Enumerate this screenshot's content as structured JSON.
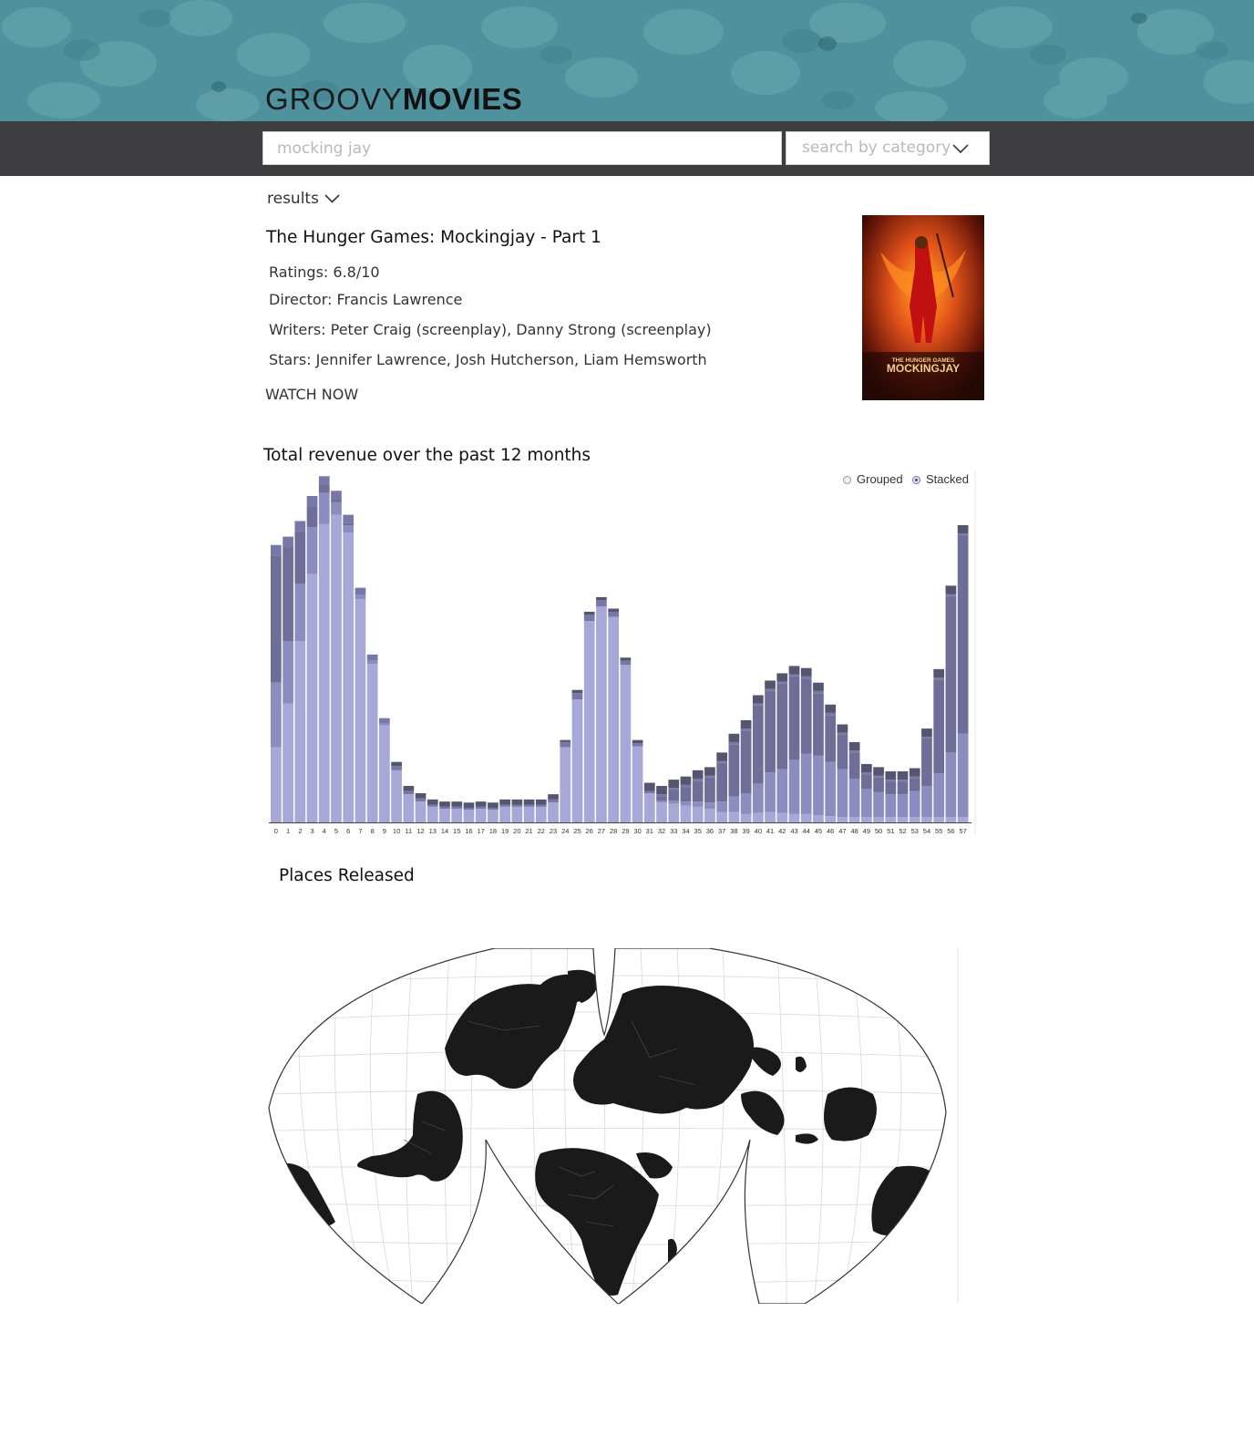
{
  "header": {
    "logo_light": "GROOVY",
    "logo_bold": "MOVIES",
    "colors": {
      "banner": "#4f929e",
      "toolbar": "#3d3d3f"
    }
  },
  "search": {
    "placeholder": "mocking jay",
    "value": "",
    "category_placeholder": "search by category",
    "category_icon": "chevron-down-icon"
  },
  "results": {
    "label": "results",
    "toggle_icon": "chevron-down-icon"
  },
  "movie": {
    "title": "The Hunger Games: Mockingjay - Part 1",
    "ratings": "Ratings: 6.8/10",
    "director": "Director: Francis Lawrence",
    "writers": "Writers: Peter Craig (screenplay), Danny Strong (screenplay)",
    "stars": "Stars: Jennifer Lawrence, Josh Hutcherson, Liam Hemsworth",
    "watch_label": "WATCH NOW",
    "poster": {
      "line1": "THE HUNGER GAMES",
      "line2": "MOCKINGJAY"
    }
  },
  "revenue": {
    "title": "Total revenue over the past 12 months",
    "legend_grouped": "Grouped",
    "legend_stacked": "Stacked",
    "selected_mode": "Stacked"
  },
  "chart_data": {
    "type": "bar",
    "stacked": true,
    "categories": [
      "0",
      "1",
      "2",
      "3",
      "4",
      "5",
      "6",
      "7",
      "8",
      "9",
      "10",
      "11",
      "12",
      "13",
      "14",
      "15",
      "16",
      "17",
      "18",
      "19",
      "20",
      "21",
      "22",
      "23",
      "24",
      "25",
      "26",
      "27",
      "28",
      "29",
      "30",
      "31",
      "32",
      "33",
      "34",
      "35",
      "36",
      "37",
      "38",
      "39",
      "40",
      "41",
      "42",
      "43",
      "44",
      "45",
      "46",
      "47",
      "48",
      "49",
      "50",
      "51",
      "52",
      "53",
      "54",
      "55",
      "56",
      "57"
    ],
    "series": [
      {
        "color": "#a8a8d8",
        "values": [
          72,
          114,
          174,
          238,
          286,
          295,
          278,
          214,
          152,
          93,
          50,
          27,
          20,
          15,
          13,
          13,
          12,
          13,
          12,
          15,
          15,
          15,
          15,
          19,
          72,
          118,
          193,
          207,
          197,
          151,
          73,
          28,
          19,
          18,
          16,
          15,
          13,
          10,
          10,
          8,
          9,
          10,
          9,
          8,
          8,
          7,
          6,
          5,
          5,
          5,
          5,
          5,
          5,
          5,
          5,
          5,
          5,
          5
        ]
      },
      {
        "color": "#8c8cc0",
        "values": [
          62,
          60,
          55,
          45,
          30,
          12,
          7,
          4,
          3,
          2,
          0,
          0,
          0,
          0,
          0,
          0,
          0,
          0,
          0,
          0,
          0,
          0,
          0,
          0,
          0,
          0,
          0,
          0,
          0,
          0,
          0,
          0,
          2,
          3,
          4,
          5,
          6,
          10,
          15,
          20,
          28,
          38,
          42,
          52,
          58,
          57,
          52,
          46,
          37,
          27,
          24,
          22,
          22,
          25,
          30,
          42,
          62,
          80
        ]
      },
      {
        "color": "#6e6e98",
        "values": [
          122,
          90,
          50,
          20,
          8,
          3,
          2,
          0,
          0,
          0,
          0,
          0,
          0,
          0,
          0,
          0,
          0,
          0,
          0,
          0,
          0,
          0,
          0,
          0,
          0,
          0,
          0,
          0,
          0,
          0,
          0,
          0,
          4,
          10,
          14,
          20,
          24,
          37,
          50,
          60,
          75,
          78,
          82,
          80,
          72,
          60,
          45,
          33,
          25,
          14,
          14,
          12,
          12,
          12,
          45,
          90,
          150,
          190
        ]
      },
      {
        "color": "#7878a8",
        "values": [
          10,
          10,
          10,
          10,
          8,
          8,
          8,
          7,
          6,
          5,
          4,
          3,
          3,
          2,
          2,
          2,
          2,
          2,
          2,
          2,
          2,
          2,
          2,
          3,
          5,
          6,
          6,
          6,
          5,
          4,
          3,
          2,
          2,
          2,
          2,
          2,
          2,
          2,
          2,
          2,
          2,
          2,
          2,
          2,
          2,
          2,
          2,
          2,
          2,
          2,
          2,
          2,
          2,
          2,
          2,
          2,
          2,
          2
        ]
      },
      {
        "color": "#555570",
        "values": [
          0,
          0,
          0,
          0,
          0,
          0,
          0,
          0,
          0,
          0,
          4,
          5,
          5,
          5,
          5,
          5,
          5,
          5,
          5,
          5,
          5,
          5,
          5,
          5,
          2,
          3,
          3,
          3,
          3,
          3,
          3,
          8,
          8,
          8,
          8,
          8,
          8,
          8,
          8,
          8,
          8,
          8,
          8,
          8,
          8,
          8,
          8,
          8,
          8,
          8,
          8,
          8,
          8,
          8,
          8,
          8,
          8,
          8
        ]
      }
    ],
    "ylim": [
      0,
      320
    ],
    "grid": false
  },
  "places": {
    "title": "Places Released"
  }
}
